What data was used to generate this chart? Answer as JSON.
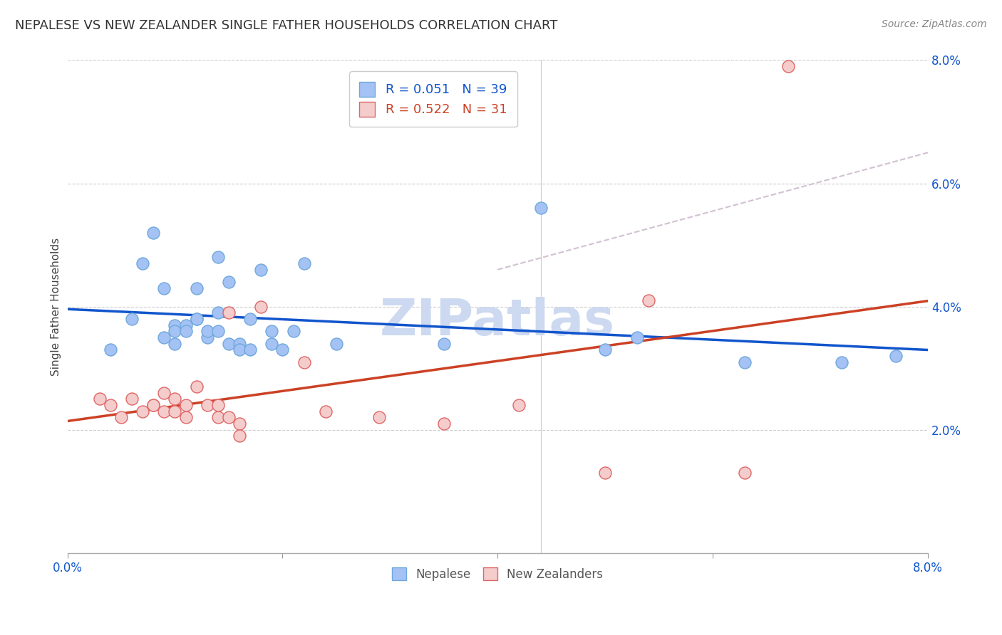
{
  "title": "NEPALESE VS NEW ZEALANDER SINGLE FATHER HOUSEHOLDS CORRELATION CHART",
  "source": "Source: ZipAtlas.com",
  "ylabel": "Single Father Households",
  "xlim": [
    0.0,
    0.08
  ],
  "ylim": [
    0.0,
    0.08
  ],
  "legend_labels": [
    "Nepalese",
    "New Zealanders"
  ],
  "blue_R": "0.051",
  "blue_N": "39",
  "pink_R": "0.522",
  "pink_N": "31",
  "blue_color": "#a4c2f4",
  "pink_color": "#f4cccc",
  "blue_dot_edge": "#6fa8dc",
  "pink_dot_edge": "#e06666",
  "blue_line_color": "#1155cc",
  "pink_line_color": "#cc4125",
  "dash_line_color": "#ccaabb",
  "watermark_color": "#ccd9f0",
  "blue_points": [
    [
      0.004,
      0.033
    ],
    [
      0.006,
      0.038
    ],
    [
      0.007,
      0.047
    ],
    [
      0.008,
      0.052
    ],
    [
      0.009,
      0.043
    ],
    [
      0.009,
      0.035
    ],
    [
      0.01,
      0.037
    ],
    [
      0.01,
      0.034
    ],
    [
      0.01,
      0.036
    ],
    [
      0.011,
      0.037
    ],
    [
      0.011,
      0.036
    ],
    [
      0.012,
      0.038
    ],
    [
      0.012,
      0.043
    ],
    [
      0.012,
      0.038
    ],
    [
      0.013,
      0.035
    ],
    [
      0.013,
      0.036
    ],
    [
      0.014,
      0.048
    ],
    [
      0.014,
      0.039
    ],
    [
      0.014,
      0.036
    ],
    [
      0.015,
      0.044
    ],
    [
      0.015,
      0.034
    ],
    [
      0.016,
      0.034
    ],
    [
      0.016,
      0.033
    ],
    [
      0.017,
      0.038
    ],
    [
      0.017,
      0.033
    ],
    [
      0.018,
      0.046
    ],
    [
      0.019,
      0.036
    ],
    [
      0.019,
      0.034
    ],
    [
      0.02,
      0.033
    ],
    [
      0.021,
      0.036
    ],
    [
      0.022,
      0.047
    ],
    [
      0.025,
      0.034
    ],
    [
      0.035,
      0.034
    ],
    [
      0.044,
      0.056
    ],
    [
      0.05,
      0.033
    ],
    [
      0.053,
      0.035
    ],
    [
      0.063,
      0.031
    ],
    [
      0.072,
      0.031
    ],
    [
      0.077,
      0.032
    ]
  ],
  "pink_points": [
    [
      0.003,
      0.025
    ],
    [
      0.004,
      0.024
    ],
    [
      0.005,
      0.022
    ],
    [
      0.006,
      0.025
    ],
    [
      0.007,
      0.023
    ],
    [
      0.008,
      0.024
    ],
    [
      0.008,
      0.024
    ],
    [
      0.009,
      0.026
    ],
    [
      0.009,
      0.023
    ],
    [
      0.01,
      0.025
    ],
    [
      0.01,
      0.023
    ],
    [
      0.011,
      0.024
    ],
    [
      0.011,
      0.022
    ],
    [
      0.012,
      0.027
    ],
    [
      0.013,
      0.024
    ],
    [
      0.014,
      0.022
    ],
    [
      0.014,
      0.024
    ],
    [
      0.015,
      0.039
    ],
    [
      0.015,
      0.022
    ],
    [
      0.016,
      0.021
    ],
    [
      0.016,
      0.019
    ],
    [
      0.018,
      0.04
    ],
    [
      0.022,
      0.031
    ],
    [
      0.024,
      0.023
    ],
    [
      0.029,
      0.022
    ],
    [
      0.035,
      0.021
    ],
    [
      0.042,
      0.024
    ],
    [
      0.05,
      0.013
    ],
    [
      0.054,
      0.041
    ],
    [
      0.063,
      0.013
    ],
    [
      0.067,
      0.079
    ]
  ]
}
